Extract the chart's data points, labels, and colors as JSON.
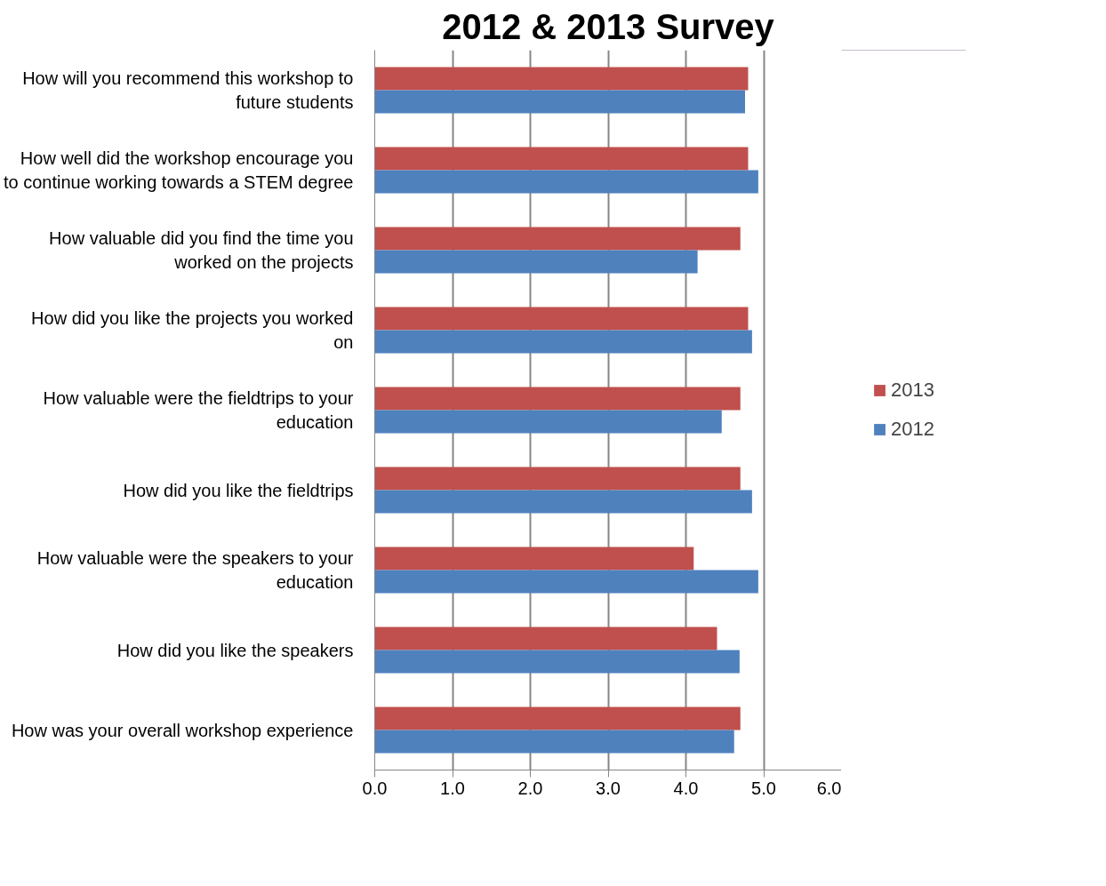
{
  "chart_data": {
    "type": "bar",
    "orientation": "horizontal",
    "title": "2012 & 2013 Survey",
    "categories": [
      "How will you recommend this workshop to future students",
      "How well did the workshop encourage you to continue working towards a STEM degree",
      "How valuable did you find the time you worked on the projects",
      "How did you like the projects you worked on",
      "How valuable were the fieldtrips to your education",
      "How did you like the fieldtrips",
      "How valuable were the speakers to your education",
      "How did you like the speakers",
      "How was your overall workshop experience"
    ],
    "series": [
      {
        "name": "2013",
        "color": "#c0504d",
        "values": [
          4.8,
          4.8,
          4.7,
          4.8,
          4.7,
          4.7,
          4.1,
          4.4,
          4.7
        ]
      },
      {
        "name": "2012",
        "color": "#4f81bd",
        "values": [
          4.76,
          4.93,
          4.15,
          4.85,
          4.46,
          4.85,
          4.93,
          4.69,
          4.62
        ]
      }
    ],
    "xlim": [
      0,
      6
    ],
    "xticks": [
      {
        "value": 0,
        "label": "0.0"
      },
      {
        "value": 1,
        "label": "1.0"
      },
      {
        "value": 2,
        "label": "2.0"
      },
      {
        "value": 3,
        "label": "3.0"
      },
      {
        "value": 4,
        "label": "4.0"
      },
      {
        "value": 5,
        "label": "5.0"
      },
      {
        "value": 6,
        "label": "6.0"
      }
    ],
    "grid": "x",
    "legend": "right"
  }
}
